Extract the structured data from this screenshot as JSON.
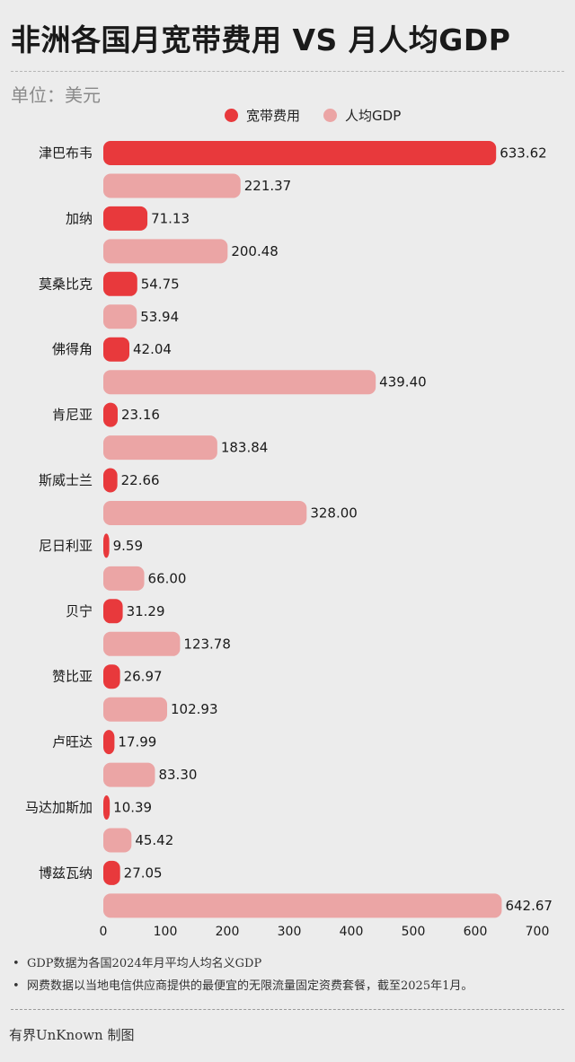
{
  "header": {
    "title": "非洲各国月宽带费用 VS 月人均GDP",
    "unit": "单位：美元"
  },
  "legend": [
    {
      "label": "宽带费用",
      "color": "#e8393c"
    },
    {
      "label": "人均GDP",
      "color": "#eba5a5"
    }
  ],
  "chart_data": {
    "type": "bar",
    "orientation": "horizontal",
    "categories": [
      "津巴布韦",
      "加纳",
      "莫桑比克",
      "佛得角",
      "肯尼亚",
      "斯威士兰",
      "尼日利亚",
      "贝宁",
      "赞比亚",
      "卢旺达",
      "马达加斯加",
      "博兹瓦纳"
    ],
    "series": [
      {
        "name": "宽带费用",
        "color": "#e8393c",
        "values": [
          633.62,
          71.13,
          54.75,
          42.04,
          23.16,
          22.66,
          9.59,
          31.29,
          26.97,
          17.99,
          10.39,
          27.05
        ]
      },
      {
        "name": "人均GDP",
        "color": "#eba5a5",
        "values": [
          221.37,
          200.48,
          53.94,
          439.4,
          183.84,
          328.0,
          66.0,
          123.78,
          102.93,
          83.3,
          45.42,
          642.67
        ]
      }
    ],
    "xlim": [
      0,
      700
    ],
    "xticks": [
      0,
      100,
      200,
      300,
      400,
      500,
      600,
      700
    ],
    "grid": false,
    "legend_position": "top"
  },
  "notes": [
    "GDP数据为各国2024年月平均人均名义GDP",
    "网费数据以当地电信供应商提供的最便宜的无限流量固定资费套餐，截至2025年1月。"
  ],
  "credit": "有界UnKnown 制图"
}
